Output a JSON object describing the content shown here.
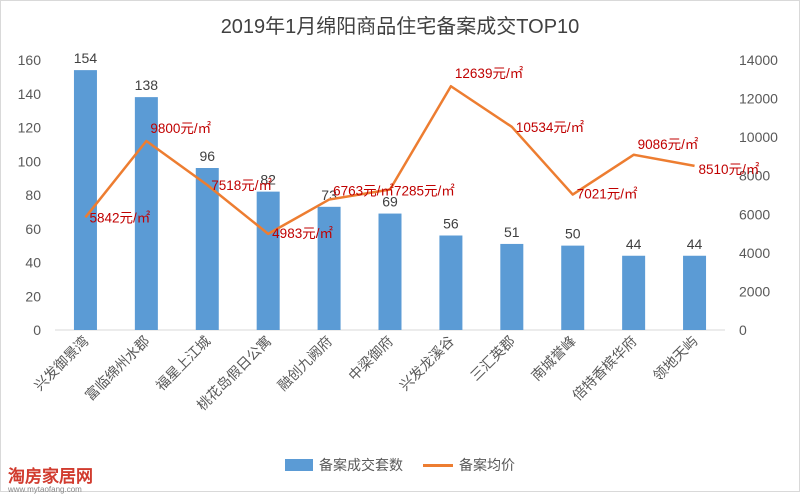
{
  "chart_data": {
    "type": "bar",
    "title": "2019年1月绵阳商品住宅备案成交TOP10",
    "categories": [
      "兴发御景湾",
      "富临绵州水郡",
      "福星上江城",
      "桃花岛假日公寓",
      "融创九阙府",
      "中梁御府",
      "兴发龙溪谷",
      "三汇英郡",
      "南城誉峰",
      "倍特香槟华府",
      "领地天屿"
    ],
    "series": [
      {
        "name": "备案成交套数",
        "type": "bar",
        "axis": "left",
        "values": [
          154,
          138,
          96,
          82,
          73,
          69,
          56,
          51,
          50,
          44,
          44
        ],
        "labels": [
          "154",
          "138",
          "96",
          "82",
          "73",
          "69",
          "56",
          "51",
          "50",
          "44",
          "44"
        ]
      },
      {
        "name": "备案均价",
        "type": "line",
        "axis": "right",
        "values": [
          5842,
          9800,
          7518,
          4983,
          6763,
          7285,
          12639,
          10534,
          7021,
          9086,
          8510
        ],
        "labels": [
          "5842元/㎡",
          "9800元/㎡",
          "7518元/㎡",
          "4983元/㎡",
          "6763元/㎡",
          "7285元/㎡",
          "12639元/㎡",
          "10534元/㎡",
          "7021元/㎡",
          "9086元/㎡",
          "8510元/㎡"
        ]
      }
    ],
    "y_left": {
      "min": 0,
      "max": 160,
      "ticks": [
        "0",
        "20",
        "40",
        "60",
        "80",
        "100",
        "120",
        "140",
        "160"
      ]
    },
    "y_right": {
      "min": 0,
      "max": 14000,
      "ticks": [
        "0",
        "2000",
        "4000",
        "6000",
        "8000",
        "10000",
        "12000",
        "14000"
      ]
    },
    "grid": false,
    "legend_position": "bottom",
    "colors": {
      "bar": "#5b9bd5",
      "line": "#ed7d31",
      "price_label": "#c00000"
    }
  },
  "watermark": {
    "brand": "淘房家居网",
    "url": "www.mytaofang.com"
  }
}
